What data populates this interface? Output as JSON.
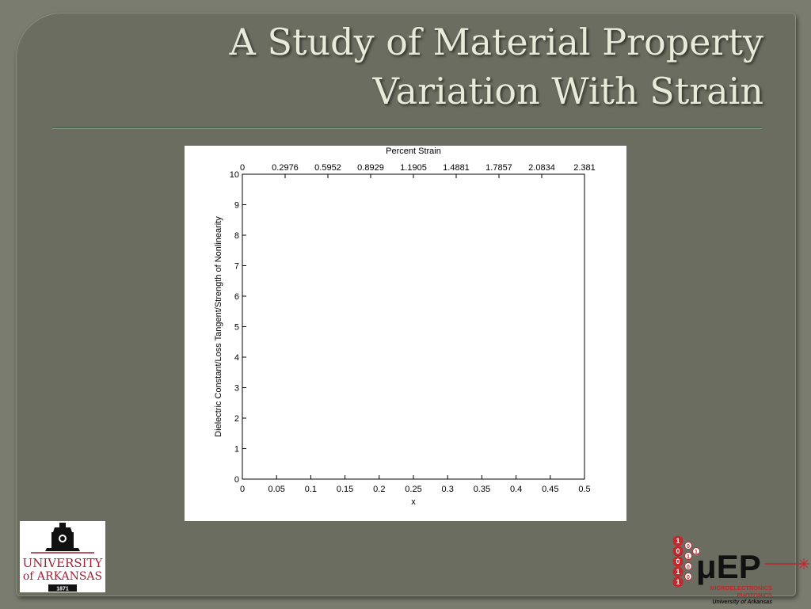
{
  "slide": {
    "title_line1": "A Study of Material Property",
    "title_line2": "Variation With Strain"
  },
  "logos": {
    "left": {
      "line1": "UNIVERSITY",
      "line2": "of ARKANSAS",
      "year": "1871"
    },
    "right": {
      "mark": "μEP",
      "line1": "MICROELECTRONICS",
      "line2": "PHOTONICS",
      "line3": "University of Arkansas",
      "digits": [
        "1",
        "0",
        "0",
        "1",
        "1",
        "0",
        "1",
        "0",
        "0",
        "1"
      ]
    }
  },
  "chart_data": {
    "type": "line",
    "title": "",
    "xlabel": "x",
    "ylabel": "Dielectric Constant/Loss Tangent/Strength of Nonlinearity",
    "top_xlabel": "Percent Strain",
    "xlim": [
      0,
      0.5
    ],
    "ylim": [
      0,
      10
    ],
    "x_ticks": [
      0,
      0.05,
      0.1,
      0.15,
      0.2,
      0.25,
      0.3,
      0.35,
      0.4,
      0.45,
      0.5
    ],
    "x_tick_labels": [
      "0",
      "0.05",
      "0.1",
      "0.15",
      "0.2",
      "0.25",
      "0.3",
      "0.35",
      "0.4",
      "0.45",
      "0.5"
    ],
    "y_ticks": [
      0,
      1,
      2,
      3,
      4,
      5,
      6,
      7,
      8,
      9,
      10
    ],
    "y_tick_labels": [
      "0",
      "1",
      "2",
      "3",
      "4",
      "5",
      "6",
      "7",
      "8",
      "9",
      "10"
    ],
    "top_ticks": [
      0,
      0.2976,
      0.5952,
      0.8929,
      1.1905,
      1.4881,
      1.7857,
      2.0834,
      2.381
    ],
    "top_tick_labels": [
      "0",
      "0.2976",
      "0.5952",
      "0.8929",
      "1.1905",
      "1.4881",
      "1.7857",
      "2.0834",
      "2.381"
    ],
    "top_lim": [
      0,
      2.381
    ],
    "series": [],
    "grid": false,
    "legend": "none"
  }
}
